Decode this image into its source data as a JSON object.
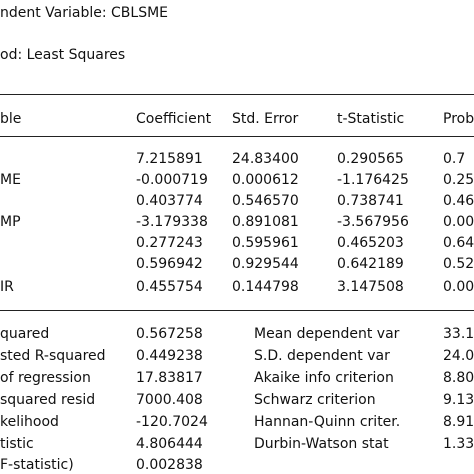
{
  "header": {
    "dependent": "ndent Variable: CBLSME",
    "method": "od: Least Squares"
  },
  "coef_table": {
    "columns": [
      "ble",
      "Coefficient",
      "Std. Error",
      "t-Statistic",
      "Prob"
    ],
    "rows": [
      {
        "var": "",
        "coef": "7.215891",
        "se": "24.83400",
        "t": "0.290565",
        "p": "0.7"
      },
      {
        "var": "ME",
        "coef": "-0.000719",
        "se": "0.000612",
        "t": "-1.176425",
        "p": "0.25"
      },
      {
        "var": "",
        "coef": "0.403774",
        "se": "0.546570",
        "t": "0.738741",
        "p": "0.46"
      },
      {
        "var": "MP",
        "coef": "-3.179338",
        "se": "0.891081",
        "t": "-3.567956",
        "p": "0.00"
      },
      {
        "var": "",
        "coef": "0.277243",
        "se": "0.595961",
        "t": "0.465203",
        "p": "0.64"
      },
      {
        "var": "",
        "coef": "0.596942",
        "se": "0.929544",
        "t": "0.642189",
        "p": "0.52"
      },
      {
        "var": "IR",
        "coef": "0.455754",
        "se": "0.144798",
        "t": "3.147508",
        "p": "0.00"
      }
    ]
  },
  "stats": {
    "rows": [
      {
        "label": "quared",
        "value": "0.567258",
        "label2": "Mean dependent var",
        "value2": "33.1"
      },
      {
        "label": "sted R-squared",
        "value": "0.449238",
        "label2": "S.D. dependent var",
        "value2": "24.0"
      },
      {
        "label": "of regression",
        "value": "17.83817",
        "label2": "Akaike info criterion",
        "value2": "8.80"
      },
      {
        "label": "squared resid",
        "value": "7000.408",
        "label2": "Schwarz criterion",
        "value2": "9.13"
      },
      {
        "label": "kelihood",
        "value": "-120.7024",
        "label2": "Hannan-Quinn criter.",
        "value2": "8.91"
      },
      {
        "label": "tistic",
        "value": "4.806444",
        "label2": "Durbin-Watson stat",
        "value2": "1.33"
      },
      {
        "label": "F-statistic)",
        "value": "0.002838",
        "label2": "",
        "value2": ""
      }
    ]
  }
}
